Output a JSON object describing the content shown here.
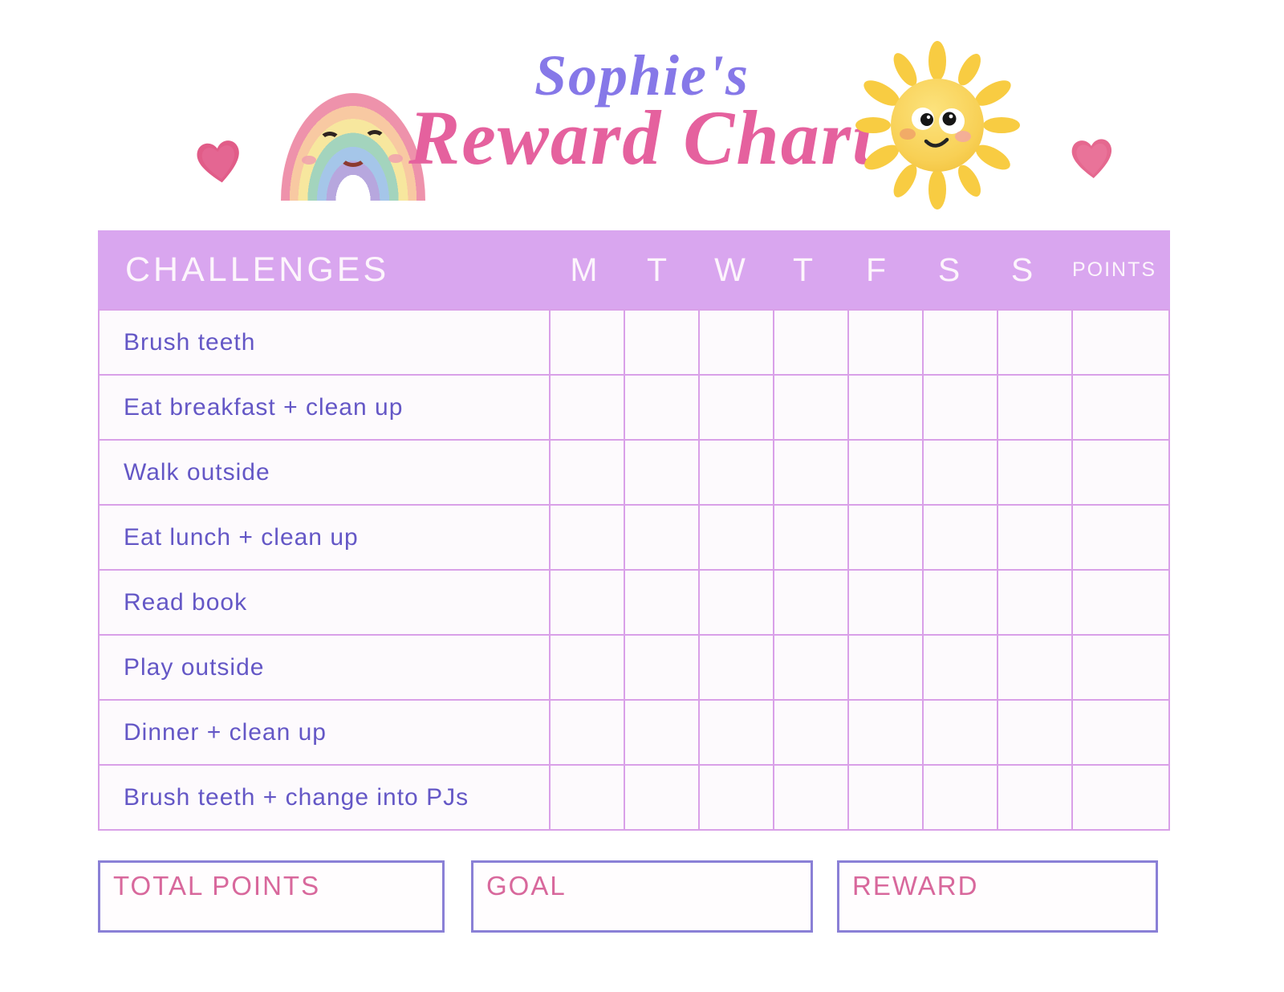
{
  "title": {
    "name_line": "Sophie's",
    "chart_line": "Reward Chart"
  },
  "table": {
    "challenges_header": "CHALLENGES",
    "day_headers": [
      "M",
      "T",
      "W",
      "T",
      "F",
      "S",
      "S"
    ],
    "points_header": "POINTS",
    "rows": [
      "Brush teeth",
      "Eat breakfast + clean up",
      "Walk outside",
      "Eat lunch + clean up",
      "Read book",
      "Play outside",
      "Dinner + clean up",
      "Brush teeth + change into PJs"
    ]
  },
  "footer_boxes": [
    {
      "label": "TOTAL POINTS",
      "value": ""
    },
    {
      "label": "GOAL",
      "value": ""
    },
    {
      "label": "REWARD",
      "value": ""
    }
  ],
  "icons": {
    "left": "heart-icon",
    "mid_left": "rainbow-icon",
    "mid_right": "sun-icon",
    "right": "heart-icon"
  },
  "colors": {
    "band": "#d9a6ef",
    "grid-line": "#d9a0e8",
    "challenge-text": "#6457c6",
    "title-name": "#8678e8",
    "title-chart": "#e5619e",
    "box-border": "#8a80d6",
    "box-label": "#d8689c",
    "heart": "#e15c88",
    "sun": "#f6c93f"
  }
}
